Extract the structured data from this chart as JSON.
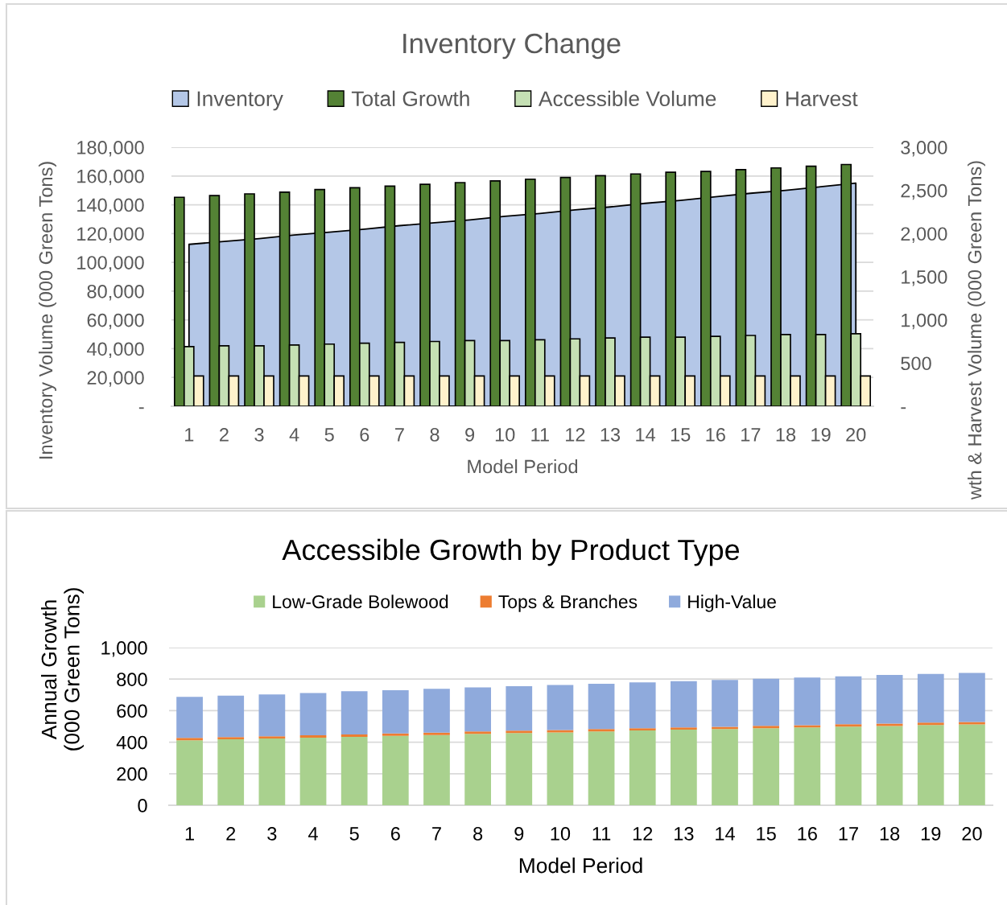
{
  "chart_data": [
    {
      "type": "bar",
      "title": "Inventory Change",
      "xlabel": "Model Period",
      "ylabel": "Inventory Volume (000 Green Tons)",
      "y2label": "wth & Harvest Volume (000 Green Tons)",
      "categories": [
        "1",
        "2",
        "3",
        "4",
        "5",
        "6",
        "7",
        "8",
        "9",
        "10",
        "11",
        "12",
        "13",
        "14",
        "15",
        "16",
        "17",
        "18",
        "19",
        "20"
      ],
      "series": [
        {
          "name": "Inventory",
          "type": "area",
          "color": "#b4c7e7",
          "values": [
            112500,
            114500,
            116500,
            119000,
            121000,
            123000,
            125500,
            127500,
            129500,
            132000,
            134000,
            136500,
            138500,
            141000,
            143000,
            145500,
            148000,
            150000,
            152500,
            155000
          ]
        },
        {
          "name": "Total Growth",
          "axis": "y2",
          "color": "#548235",
          "values": [
            2420,
            2440,
            2460,
            2480,
            2510,
            2530,
            2550,
            2570,
            2590,
            2610,
            2630,
            2650,
            2670,
            2690,
            2710,
            2720,
            2740,
            2760,
            2780,
            2800
          ]
        },
        {
          "name": "Accessible Volume",
          "axis": "y2",
          "color": "#c5e0b4",
          "values": [
            690,
            700,
            700,
            710,
            720,
            730,
            740,
            750,
            760,
            760,
            770,
            780,
            790,
            800,
            800,
            810,
            820,
            830,
            830,
            840
          ]
        },
        {
          "name": "Harvest",
          "axis": "y2",
          "color": "#fff2cc",
          "values": [
            350,
            350,
            350,
            350,
            350,
            350,
            350,
            350,
            350,
            350,
            350,
            350,
            350,
            350,
            350,
            350,
            350,
            350,
            350,
            350
          ]
        }
      ],
      "ylim": [
        0,
        180000
      ],
      "yticks": [
        {
          "value": 0,
          "label": "-"
        },
        {
          "value": 20000,
          "label": "20,000"
        },
        {
          "value": 40000,
          "label": "40,000"
        },
        {
          "value": 60000,
          "label": "60,000"
        },
        {
          "value": 80000,
          "label": "80,000"
        },
        {
          "value": 100000,
          "label": "100,000"
        },
        {
          "value": 120000,
          "label": "120,000"
        },
        {
          "value": 140000,
          "label": "140,000"
        },
        {
          "value": 160000,
          "label": "160,000"
        },
        {
          "value": 180000,
          "label": "180,000"
        }
      ],
      "y2lim": [
        0,
        3000
      ],
      "y2ticks": [
        {
          "value": 0,
          "label": "-"
        },
        500,
        {
          "value": 1000,
          "label": "1,000"
        },
        {
          "value": 1500,
          "label": "1,500"
        },
        {
          "value": 2000,
          "label": "2,000"
        },
        {
          "value": 2500,
          "label": "2,500"
        },
        {
          "value": 3000,
          "label": "3,000"
        }
      ],
      "grid": "y",
      "legend": "top"
    },
    {
      "type": "bar",
      "stacked": true,
      "title": "Accessible Growth by Product Type",
      "xlabel": "Model Period",
      "ylabel": "Annual Growth\n(000 Green Tons)",
      "categories": [
        "1",
        "2",
        "3",
        "4",
        "5",
        "6",
        "7",
        "8",
        "9",
        "10",
        "11",
        "12",
        "13",
        "14",
        "15",
        "16",
        "17",
        "18",
        "19",
        "20"
      ],
      "series": [
        {
          "name": "Low-Grade Bolewood",
          "color": "#a9d18e",
          "values": [
            412,
            418,
            423,
            429,
            434,
            440,
            445,
            453,
            458,
            462,
            468,
            474,
            479,
            483,
            489,
            493,
            499,
            503,
            509,
            513
          ]
        },
        {
          "name": "Tops & Branches",
          "color": "#ed7d31",
          "values": [
            15,
            15,
            15,
            15,
            15,
            15,
            15,
            15,
            15,
            15,
            15,
            15,
            15,
            15,
            15,
            15,
            15,
            15,
            15,
            15
          ]
        },
        {
          "name": "High-Value",
          "color": "#8faadc",
          "values": [
            261,
            262,
            265,
            268,
            274,
            275,
            279,
            280,
            282,
            286,
            288,
            290,
            293,
            297,
            298,
            302,
            304,
            308,
            309,
            311
          ]
        }
      ],
      "ylim": [
        0,
        1000
      ],
      "yticks": [
        0,
        200,
        400,
        600,
        800,
        {
          "value": 1000,
          "label": "1,000"
        }
      ],
      "grid": "y",
      "legend": "top"
    }
  ]
}
